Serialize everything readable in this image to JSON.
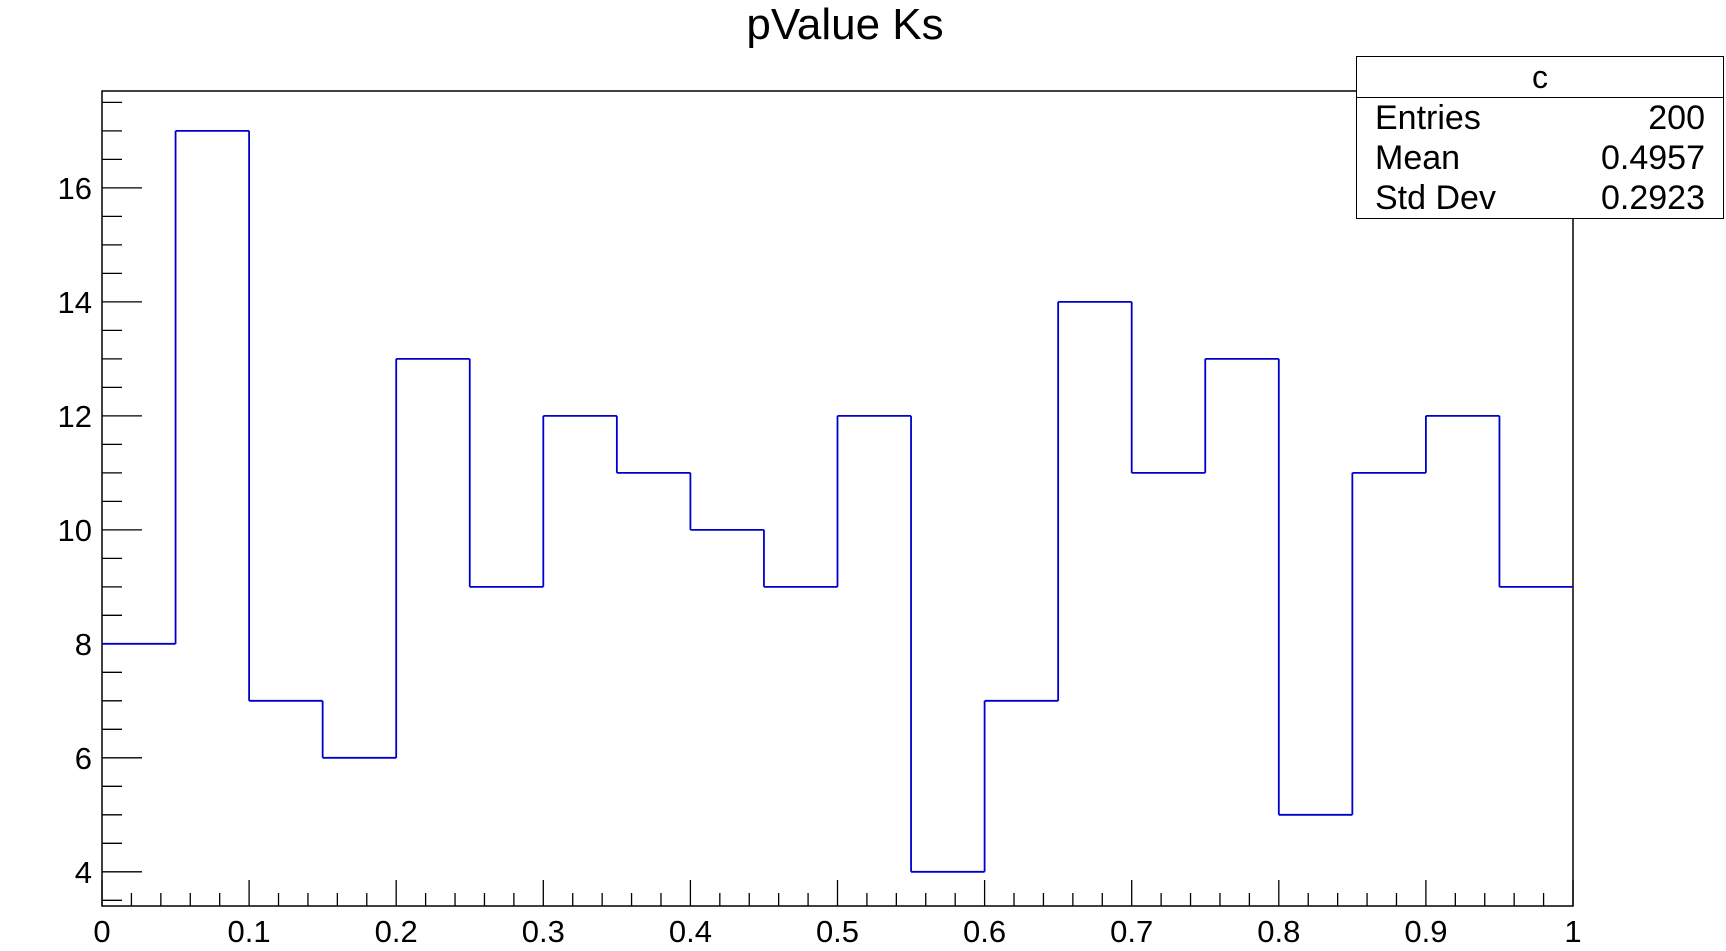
{
  "chart_data": {
    "type": "bar",
    "title": "pValue Ks",
    "xlabel": "",
    "ylabel": "",
    "bin_edges": [
      0,
      0.05,
      0.1,
      0.15,
      0.2,
      0.25,
      0.3,
      0.35,
      0.4,
      0.45,
      0.5,
      0.55,
      0.6,
      0.65,
      0.7,
      0.75,
      0.8,
      0.85,
      0.9,
      0.95,
      1.0
    ],
    "values": [
      8,
      17,
      7,
      6,
      13,
      9,
      12,
      11,
      10,
      9,
      12,
      4,
      7,
      14,
      11,
      13,
      5,
      11,
      12,
      9
    ],
    "xlim": [
      0,
      1
    ],
    "ylim": [
      3.4,
      17.7
    ],
    "x_ticks": [
      "0",
      "0.1",
      "0.2",
      "0.3",
      "0.4",
      "0.5",
      "0.6",
      "0.7",
      "0.8",
      "0.9",
      "1"
    ],
    "x_tick_values": [
      0,
      0.1,
      0.2,
      0.3,
      0.4,
      0.5,
      0.6,
      0.7,
      0.8,
      0.9,
      1.0
    ],
    "y_ticks": [
      "4",
      "6",
      "8",
      "10",
      "12",
      "14",
      "16"
    ],
    "y_tick_values": [
      4,
      6,
      8,
      10,
      12,
      14,
      16
    ],
    "line_color": "#0000cc",
    "grid": false,
    "legend": "none"
  },
  "stats": {
    "name": "c",
    "rows": [
      {
        "label": "Entries",
        "value": "200"
      },
      {
        "label": "Mean",
        "value": "0.4957"
      },
      {
        "label": "Std Dev",
        "value": "0.2923"
      }
    ]
  }
}
